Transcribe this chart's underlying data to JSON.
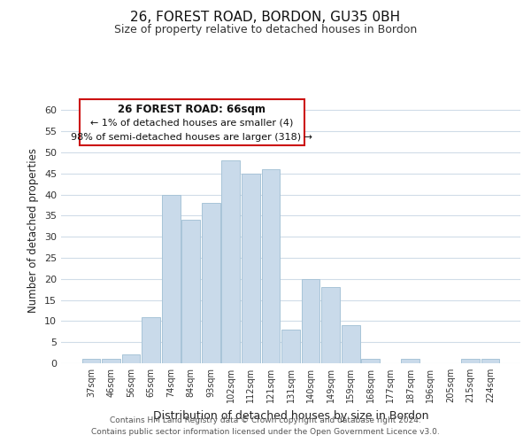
{
  "title": "26, FOREST ROAD, BORDON, GU35 0BH",
  "subtitle": "Size of property relative to detached houses in Bordon",
  "xlabel": "Distribution of detached houses by size in Bordon",
  "ylabel": "Number of detached properties",
  "bar_color": "#c9daea",
  "bar_edge_color": "#a8c4d8",
  "categories": [
    "37sqm",
    "46sqm",
    "56sqm",
    "65sqm",
    "74sqm",
    "84sqm",
    "93sqm",
    "102sqm",
    "112sqm",
    "121sqm",
    "131sqm",
    "140sqm",
    "149sqm",
    "159sqm",
    "168sqm",
    "177sqm",
    "187sqm",
    "196sqm",
    "205sqm",
    "215sqm",
    "224sqm"
  ],
  "values": [
    1,
    1,
    2,
    11,
    40,
    34,
    38,
    48,
    45,
    46,
    8,
    20,
    18,
    9,
    1,
    0,
    1,
    0,
    0,
    1,
    1
  ],
  "ylim": [
    0,
    63
  ],
  "yticks": [
    0,
    5,
    10,
    15,
    20,
    25,
    30,
    35,
    40,
    45,
    50,
    55,
    60
  ],
  "annotation_line1": "26 FOREST ROAD: 66sqm",
  "annotation_line2": "← 1% of detached houses are smaller (4)",
  "annotation_line3": "98% of semi-detached houses are larger (318) →",
  "background_color": "#ffffff",
  "grid_color": "#d0dce8",
  "footer_line1": "Contains HM Land Registry data © Crown copyright and database right 2024.",
  "footer_line2": "Contains public sector information licensed under the Open Government Licence v3.0."
}
